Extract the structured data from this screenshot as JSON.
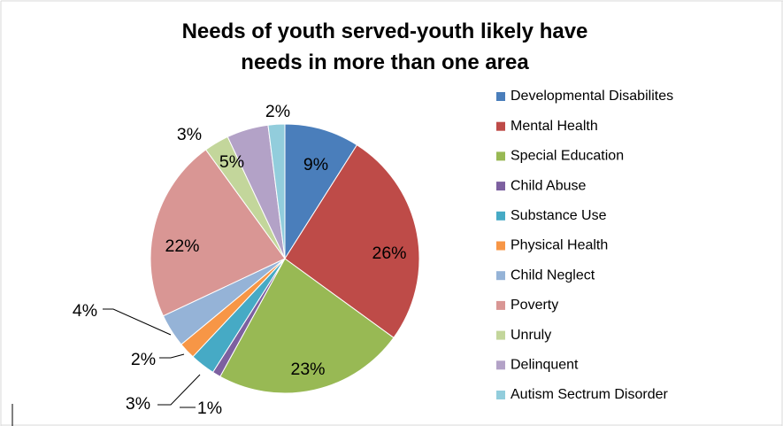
{
  "chart_data": {
    "type": "pie",
    "title_lines": [
      "Needs of youth served-youth likely have",
      "needs in more than one area"
    ],
    "legend_position": "right",
    "slices": [
      {
        "label": "Developmental Disabilites",
        "value": 9,
        "value_label": "9%",
        "color": "#4A7EBB"
      },
      {
        "label": "Mental Health",
        "value": 26,
        "value_label": "26%",
        "color": "#BE4B48"
      },
      {
        "label": "Special Education",
        "value": 23,
        "value_label": "23%",
        "color": "#98B954"
      },
      {
        "label": "Child Abuse",
        "value": 1,
        "value_label": "1%",
        "color": "#7D60A0"
      },
      {
        "label": "Substance Use",
        "value": 3,
        "value_label": "3%",
        "color": "#46AAC5"
      },
      {
        "label": "Physical Health",
        "value": 2,
        "value_label": "2%",
        "color": "#F79646"
      },
      {
        "label": "Child Neglect",
        "value": 4,
        "value_label": "4%",
        "color": "#95B3D7"
      },
      {
        "label": "Poverty",
        "value": 22,
        "value_label": "22%",
        "color": "#D99694"
      },
      {
        "label": "Unruly",
        "value": 3,
        "value_label": "3%",
        "color": "#C3D69B"
      },
      {
        "label": "Delinquent",
        "value": 5,
        "value_label": "5%",
        "color": "#B3A2C7"
      },
      {
        "label": "Autism Sectrum Disorder",
        "value": 2,
        "value_label": "2%",
        "color": "#92CDDC"
      }
    ]
  }
}
